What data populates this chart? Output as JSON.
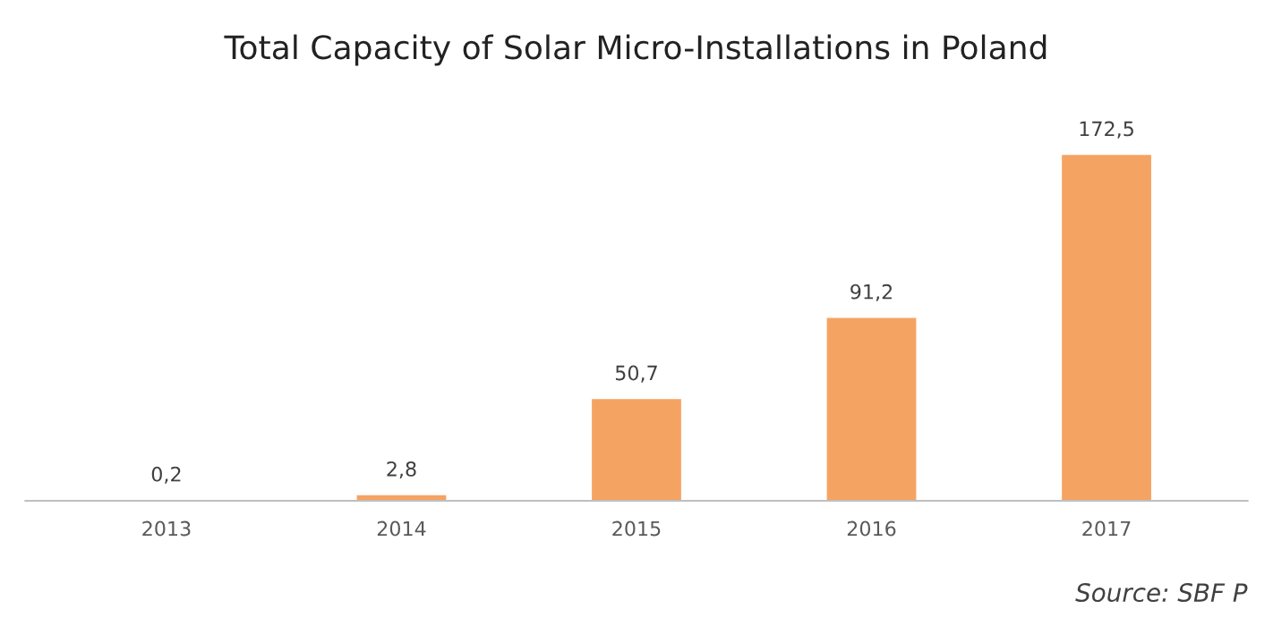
{
  "chart_data": {
    "type": "bar",
    "title": "Total Capacity of Solar Micro-Installations in Poland",
    "categories": [
      "2013",
      "2014",
      "2015",
      "2016",
      "2017"
    ],
    "values": [
      0.2,
      2.8,
      50.7,
      91.2,
      172.5
    ],
    "value_labels": [
      "0,2",
      "2,8",
      "50,7",
      "91,2",
      "172,5"
    ],
    "color": "#f5a363",
    "annotations": [
      "Source: SBF P"
    ]
  }
}
